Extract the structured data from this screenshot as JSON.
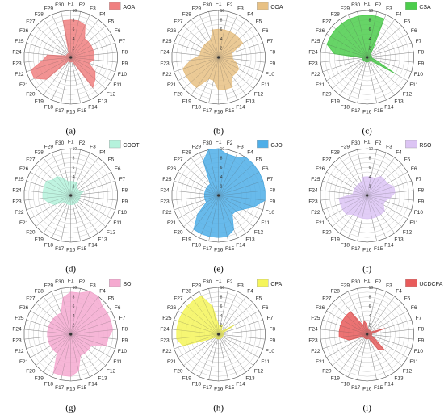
{
  "chart_data": [
    {
      "type": "radar",
      "label": "(a)",
      "legend": "AOA",
      "color": "#f08080",
      "rmax": 10,
      "ticks": [
        2,
        4,
        6,
        8,
        10
      ],
      "axes": [
        "F1",
        "F2",
        "F3",
        "F4",
        "F5",
        "F6",
        "F7",
        "F8",
        "F9",
        "F10",
        "F11",
        "F12",
        "F13",
        "F14",
        "F15",
        "F16",
        "F17",
        "F18",
        "F19",
        "F20",
        "F21",
        "F22",
        "F23",
        "F24",
        "F25",
        "F26",
        "F27",
        "F28",
        "F29",
        "F30"
      ],
      "values": [
        8,
        8,
        7.5,
        5,
        5,
        5,
        5,
        5,
        5,
        4,
        6,
        7,
        8,
        1,
        1,
        1,
        1,
        1,
        1,
        7,
        9,
        9,
        6,
        5,
        1,
        1,
        1,
        1,
        1,
        8
      ]
    },
    {
      "type": "radar",
      "label": "(b)",
      "legend": "COA",
      "color": "#e8c184",
      "rmax": 10,
      "ticks": [
        2,
        4,
        6,
        8,
        10
      ],
      "axes": [
        "F1",
        "F2",
        "F3",
        "F4",
        "F5",
        "F6",
        "F7",
        "F8",
        "F9",
        "F10",
        "F11",
        "F12",
        "F13",
        "F14",
        "F15",
        "F16",
        "F17",
        "F18",
        "F19",
        "F20",
        "F21",
        "F22",
        "F23",
        "F24",
        "F25",
        "F26",
        "F27",
        "F28",
        "F29",
        "F30"
      ],
      "values": [
        6,
        6,
        6,
        6,
        6,
        6,
        3,
        3,
        3,
        4,
        5,
        5,
        5,
        7,
        7,
        7,
        5,
        5,
        8,
        8,
        8,
        8,
        6,
        4,
        4,
        4,
        4,
        4,
        4,
        6
      ]
    },
    {
      "type": "radar",
      "label": "(c)",
      "legend": "CSA",
      "color": "#4ccd4c",
      "rmax": 10,
      "ticks": [
        2,
        4,
        6,
        8,
        10
      ],
      "axes": [
        "F1",
        "F2",
        "F3",
        "F4",
        "F5",
        "F6",
        "F7",
        "F8",
        "F9",
        "F10",
        "F11",
        "F12",
        "F13",
        "F14",
        "F15",
        "F16",
        "F17",
        "F18",
        "F19",
        "F20",
        "F21",
        "F22",
        "F23",
        "F24",
        "F25",
        "F26",
        "F27",
        "F28",
        "F29",
        "F30"
      ],
      "values": [
        9,
        9,
        9,
        2,
        1,
        1,
        1,
        1,
        1,
        2,
        7,
        1,
        1,
        1,
        1,
        1,
        1,
        1,
        1,
        1,
        1,
        1,
        1,
        7,
        9,
        9,
        9,
        9,
        9,
        9
      ]
    },
    {
      "type": "radar",
      "label": "(d)",
      "legend": "COOT",
      "color": "#b5f2dc",
      "rmax": 10,
      "ticks": [
        2,
        4,
        6,
        8,
        10
      ],
      "axes": [
        "F1",
        "F2",
        "F3",
        "F4",
        "F5",
        "F6",
        "F7",
        "F8",
        "F9",
        "F10",
        "F11",
        "F12",
        "F13",
        "F14",
        "F15",
        "F16",
        "F17",
        "F18",
        "F19",
        "F20",
        "F21",
        "F22",
        "F23",
        "F24",
        "F25",
        "F26",
        "F27",
        "F28",
        "F29",
        "F30"
      ],
      "values": [
        3,
        3,
        3,
        2,
        2,
        2,
        3,
        2,
        2,
        2,
        2,
        2,
        2,
        2,
        2,
        2,
        2,
        2,
        2,
        2,
        4,
        5,
        6,
        6,
        6,
        6,
        5,
        5,
        4,
        3
      ]
    },
    {
      "type": "radar",
      "label": "(e)",
      "legend": "GJO",
      "color": "#4eaee8",
      "rmax": 10,
      "ticks": [
        2,
        4,
        6,
        8,
        10
      ],
      "axes": [
        "F1",
        "F2",
        "F3",
        "F4",
        "F5",
        "F6",
        "F7",
        "F8",
        "F9",
        "F10",
        "F11",
        "F12",
        "F13",
        "F14",
        "F15",
        "F16",
        "F17",
        "F18",
        "F19",
        "F20",
        "F21",
        "F22",
        "F23",
        "F24",
        "F25",
        "F26",
        "F27",
        "F28",
        "F29",
        "F30"
      ],
      "values": [
        10,
        9,
        9,
        10,
        10,
        10,
        10,
        10,
        10,
        8,
        6,
        5,
        5,
        8,
        9,
        9,
        9,
        9,
        9,
        6,
        3,
        3,
        3,
        3,
        3,
        3,
        3,
        3,
        8,
        10
      ]
    },
    {
      "type": "radar",
      "label": "(f)",
      "legend": "RSO",
      "color": "#dcc4f4",
      "rmax": 10,
      "ticks": [
        2,
        4,
        6,
        8,
        10
      ],
      "axes": [
        "F1",
        "F2",
        "F3",
        "F4",
        "F5",
        "F6",
        "F7",
        "F8",
        "F9",
        "F10",
        "F11",
        "F12",
        "F13",
        "F14",
        "F15",
        "F16",
        "F17",
        "F18",
        "F19",
        "F20",
        "F21",
        "F22",
        "F23",
        "F24",
        "F25",
        "F26",
        "F27",
        "F28",
        "F29",
        "F30"
      ],
      "values": [
        4,
        4,
        4,
        5,
        5,
        5,
        6,
        6,
        5,
        4,
        4,
        5,
        5,
        5,
        5,
        5,
        5,
        5,
        5,
        6,
        6,
        6,
        6,
        3,
        3,
        3,
        3,
        3,
        3,
        4
      ]
    },
    {
      "type": "radar",
      "label": "(g)",
      "legend": "SO",
      "color": "#f5a9d0",
      "rmax": 10,
      "ticks": [
        2,
        4,
        6,
        8,
        10
      ],
      "axes": [
        "F1",
        "F2",
        "F3",
        "F4",
        "F5",
        "F6",
        "F7",
        "F8",
        "F9",
        "F10",
        "F11",
        "F12",
        "F13",
        "F14",
        "F15",
        "F16",
        "F17",
        "F18",
        "F19",
        "F20",
        "F21",
        "F22",
        "F23",
        "F24",
        "F25",
        "F26",
        "F27",
        "F28",
        "F29",
        "F30"
      ],
      "values": [
        9,
        9,
        10,
        10,
        9,
        9,
        9,
        9,
        8,
        8,
        5,
        5,
        5,
        5,
        8,
        9,
        9,
        9,
        5,
        5,
        5,
        5,
        5,
        5,
        5,
        5,
        5,
        5,
        5,
        8
      ]
    },
    {
      "type": "radar",
      "label": "(h)",
      "legend": "CPA",
      "color": "#f5f55a",
      "rmax": 10,
      "ticks": [
        2,
        4,
        6,
        8,
        10
      ],
      "axes": [
        "F1",
        "F2",
        "F3",
        "F4",
        "F5",
        "F6",
        "F7",
        "F8",
        "F9",
        "F10",
        "F11",
        "F12",
        "F13",
        "F14",
        "F15",
        "F16",
        "F17",
        "F18",
        "F19",
        "F20",
        "F21",
        "F22",
        "F23",
        "F24",
        "F25",
        "F26",
        "F27",
        "F28",
        "F29",
        "F30"
      ],
      "values": [
        2,
        2,
        2,
        1,
        1,
        4,
        1,
        1,
        1,
        1,
        1,
        1,
        1,
        1,
        1,
        1,
        1,
        1,
        1,
        1,
        2,
        8,
        9,
        9,
        9,
        9,
        9,
        9,
        9,
        6
      ]
    },
    {
      "type": "radar",
      "label": "(i)",
      "legend": "UCDCPA",
      "color": "#e85b5b",
      "rmax": 10,
      "ticks": [
        2,
        4,
        6,
        8,
        10
      ],
      "axes": [
        "F1",
        "F2",
        "F3",
        "F4",
        "F5",
        "F6",
        "F7",
        "F8",
        "F9",
        "F10",
        "F11",
        "F12",
        "F13",
        "F14",
        "F15",
        "F16",
        "F17",
        "F18",
        "F19",
        "F20",
        "F21",
        "F22",
        "F23",
        "F24",
        "F25",
        "F26",
        "F27",
        "F28",
        "F29",
        "F30"
      ],
      "values": [
        2,
        1,
        1,
        1,
        1,
        1,
        4,
        1,
        1,
        1,
        2,
        5,
        4,
        1,
        1,
        1,
        1,
        1,
        1,
        1,
        1,
        4,
        6,
        6,
        6,
        6,
        6,
        6,
        2,
        3
      ]
    }
  ]
}
